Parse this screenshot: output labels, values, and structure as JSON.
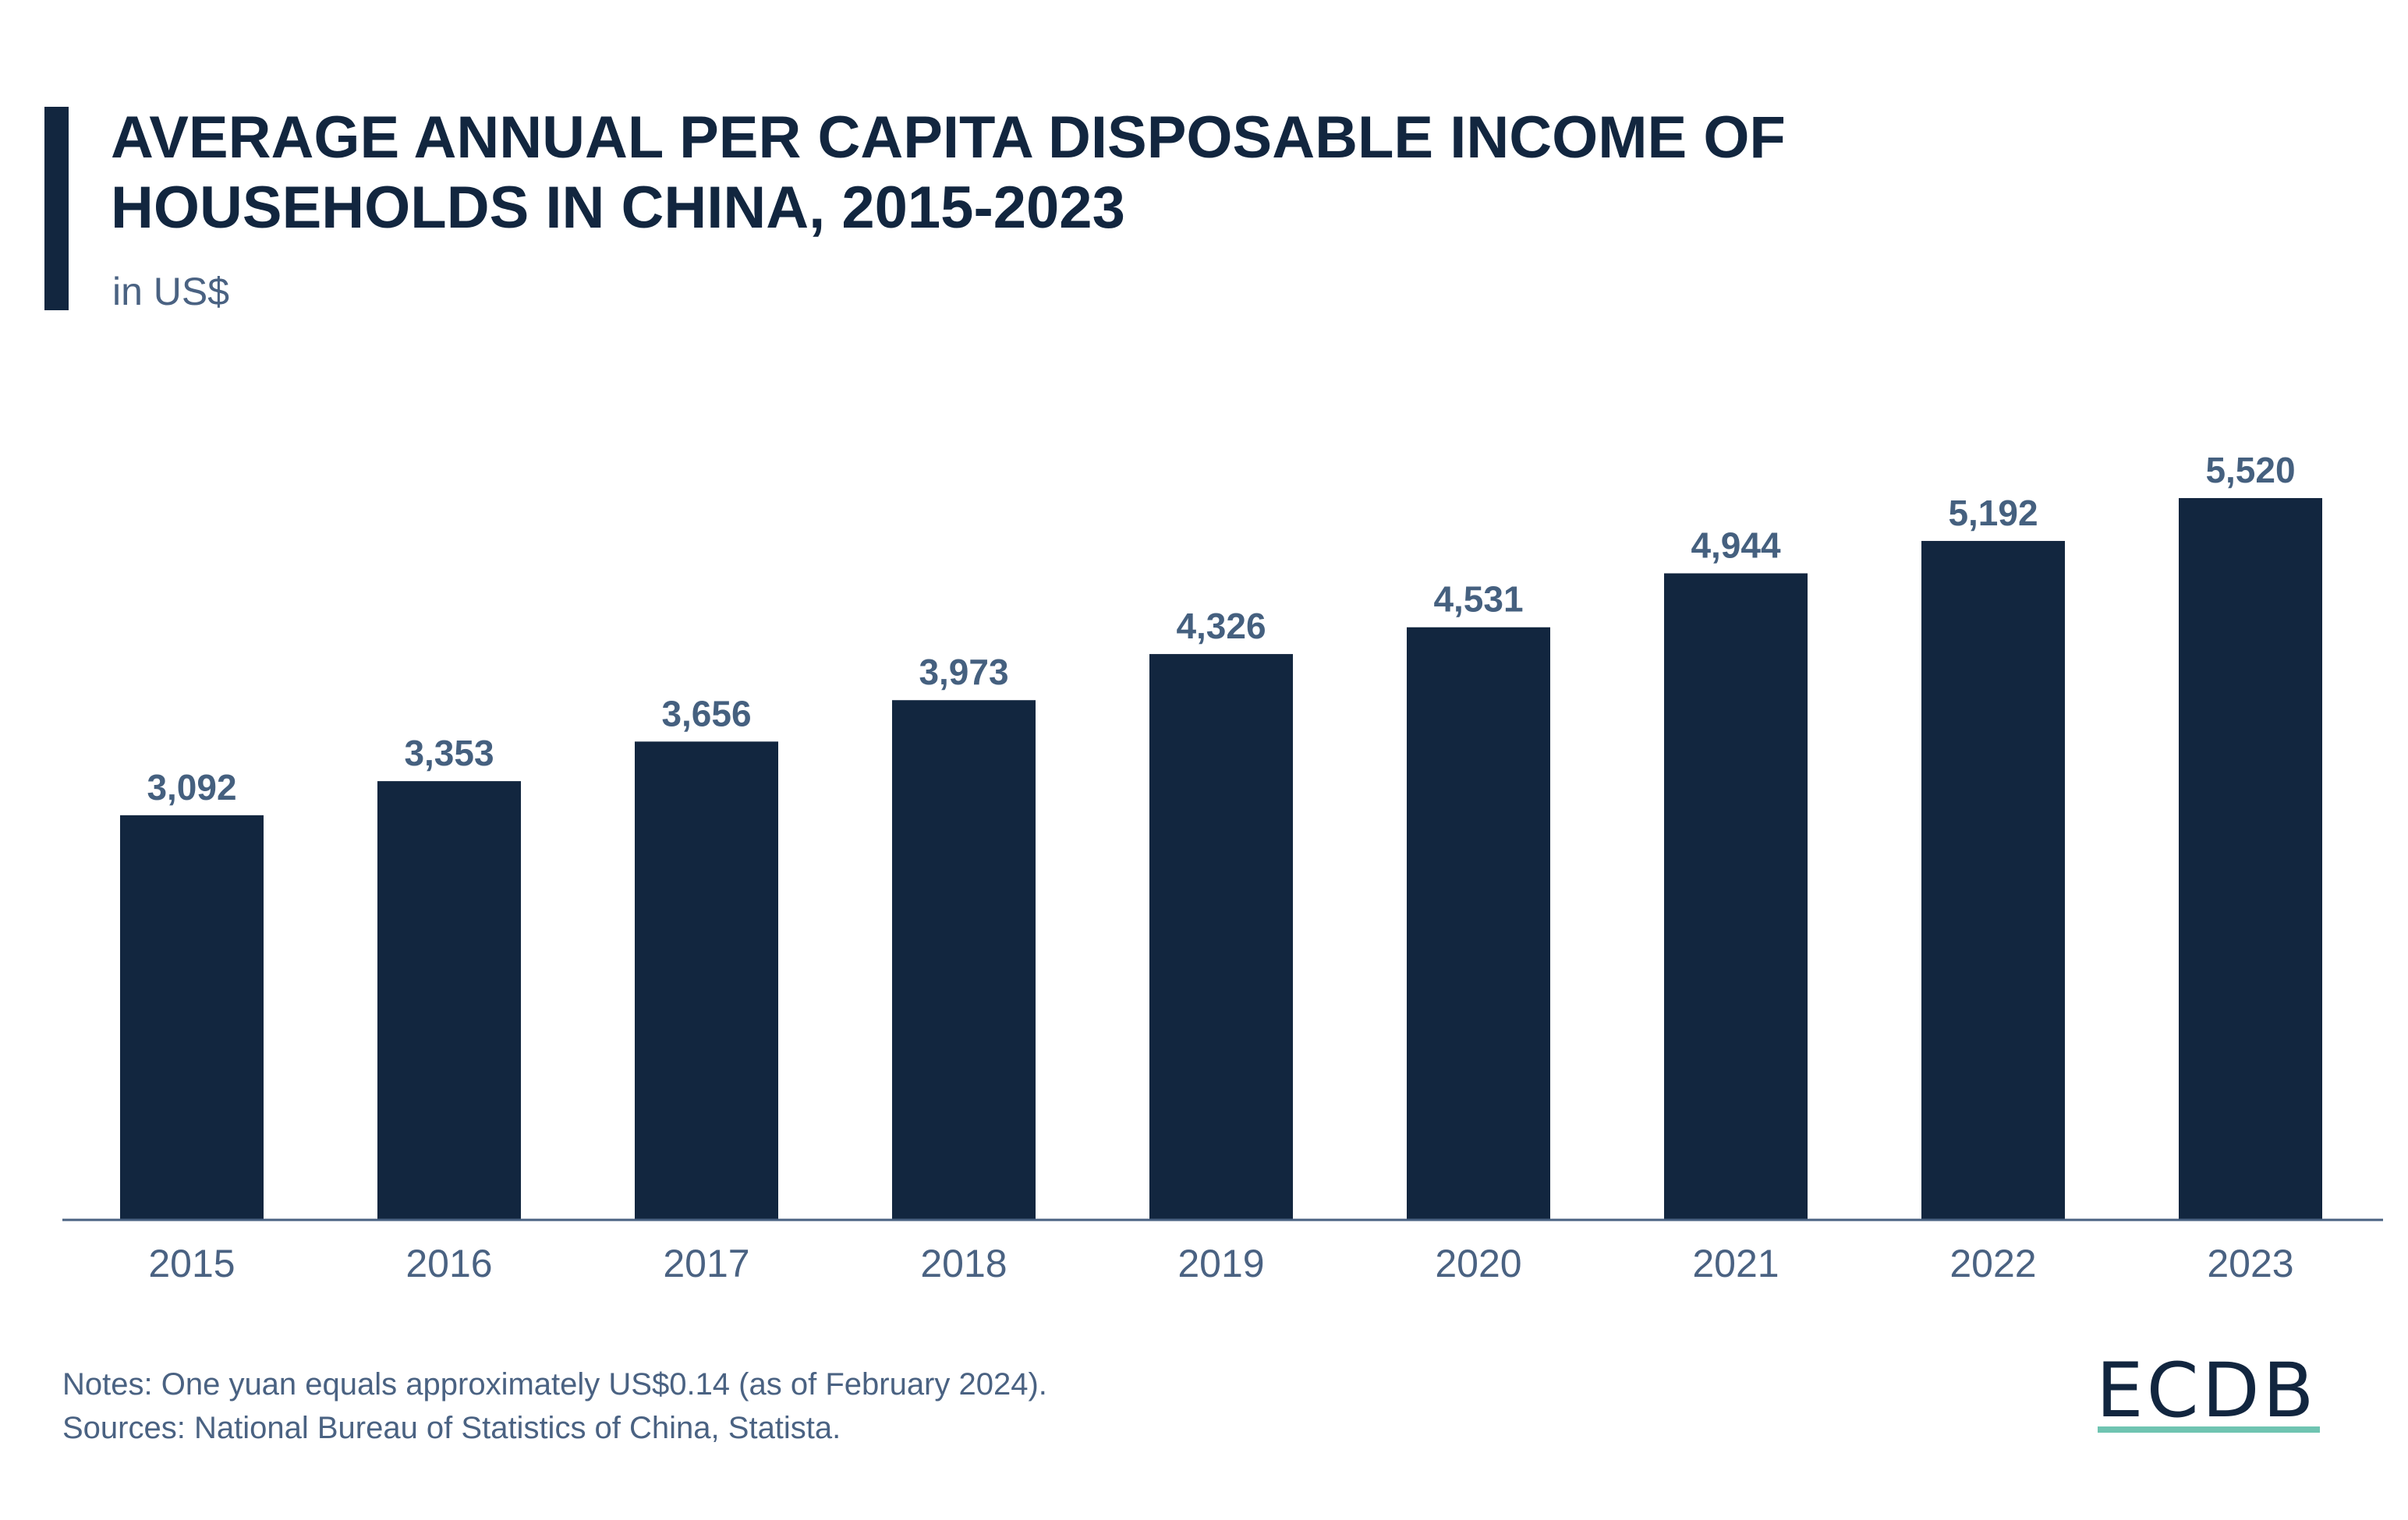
{
  "header": {
    "title_line1": "AVERAGE ANNUAL PER CAPITA DISPOSABLE INCOME OF",
    "title_line2": "HOUSEHOLDS IN CHINA, 2015-2023",
    "subtitle": "in US$"
  },
  "chart_data": {
    "type": "bar",
    "title": "AVERAGE ANNUAL PER CAPITA DISPOSABLE INCOME OF HOUSEHOLDS IN CHINA, 2015-2023",
    "subtitle": "in US$",
    "categories": [
      "2015",
      "2016",
      "2017",
      "2018",
      "2019",
      "2020",
      "2021",
      "2022",
      "2023"
    ],
    "values": [
      3092,
      3353,
      3656,
      3973,
      4326,
      4531,
      4944,
      5192,
      5520
    ],
    "data_labels": [
      "3,092",
      "3,353",
      "3,656",
      "3,973",
      "4,326",
      "4,531",
      "4,944",
      "5,192",
      "5,520"
    ],
    "ylim": [
      0,
      5520
    ],
    "grid": false,
    "colors": {
      "bar": "#12263f",
      "label": "#45607f",
      "axis": "#4a6282"
    }
  },
  "footer": {
    "notes": "Notes: One yuan equals approximately US$0.14 (as of February 2024).",
    "sources": "Sources: National Bureau of Statistics of China, Statista."
  },
  "logo": {
    "text": "ECDB",
    "accent_color": "#6fc4b1"
  }
}
